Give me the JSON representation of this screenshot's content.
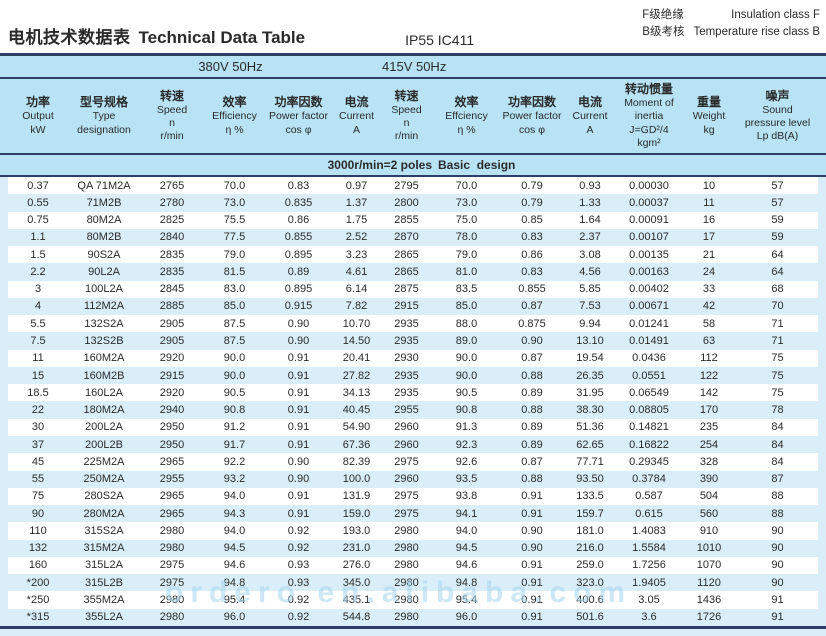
{
  "header": {
    "title_cn": "电机技术数据表",
    "title_en": "Technical Data Table",
    "protection": "IP55 IC411",
    "insulation_cn": "F级绝缘",
    "insulation_en": "Insulation class F",
    "temp_rise_cn": "B级考核",
    "temp_rise_en": "Temperature rise class B"
  },
  "table": {
    "voltage_bands": [
      "380V 50Hz",
      "415V 50Hz"
    ],
    "section": {
      "left": "3000r/min=2 poles",
      "right": "Basic  design"
    },
    "columns": [
      {
        "cn": "功率",
        "lines": [
          "Output",
          "kW"
        ]
      },
      {
        "cn": "型号规格",
        "lines": [
          "Type",
          "designation"
        ]
      },
      {
        "cn": "转速",
        "lines": [
          "Speed",
          "n",
          "r/min"
        ]
      },
      {
        "cn": "效率",
        "lines": [
          "Efficiency",
          "η %"
        ]
      },
      {
        "cn": "功率因数",
        "lines": [
          "Power factor",
          "cos φ"
        ]
      },
      {
        "cn": "电流",
        "lines": [
          "Current",
          "A"
        ]
      },
      {
        "cn": "转速",
        "lines": [
          "Speed",
          "n",
          "r/min"
        ]
      },
      {
        "cn": "效率",
        "lines": [
          "Effciency",
          "η %"
        ]
      },
      {
        "cn": "功率因数",
        "lines": [
          "Power factor",
          "cos φ"
        ]
      },
      {
        "cn": "电流",
        "lines": [
          "Current",
          "A"
        ]
      },
      {
        "cn": "转动惯量",
        "lines": [
          "Moment of",
          "inertia",
          "J=GD²/4",
          "kgm²"
        ]
      },
      {
        "cn": "重量",
        "lines": [
          "Weight",
          "kg"
        ]
      },
      {
        "cn": "噪声",
        "lines": [
          "Sound",
          "pressure level",
          "Lp dB(A)"
        ]
      }
    ],
    "rows": [
      [
        "0.37",
        "QA 71M2A",
        "2765",
        "70.0",
        "0.83",
        "0.97",
        "2795",
        "70.0",
        "0.79",
        "0.93",
        "0.00030",
        "10",
        "57"
      ],
      [
        "0.55",
        "71M2B",
        "2780",
        "73.0",
        "0.835",
        "1.37",
        "2800",
        "73.0",
        "0.79",
        "1.33",
        "0.00037",
        "11",
        "57"
      ],
      [
        "0.75",
        "80M2A",
        "2825",
        "75.5",
        "0.86",
        "1.75",
        "2855",
        "75.0",
        "0.85",
        "1.64",
        "0.00091",
        "16",
        "59"
      ],
      [
        "1.1",
        "80M2B",
        "2840",
        "77.5",
        "0.855",
        "2.52",
        "2870",
        "78.0",
        "0.83",
        "2.37",
        "0.00107",
        "17",
        "59"
      ],
      [
        "1.5",
        "90S2A",
        "2835",
        "79.0",
        "0.895",
        "3.23",
        "2865",
        "79.0",
        "0.86",
        "3.08",
        "0.00135",
        "21",
        "64"
      ],
      [
        "2.2",
        "90L2A",
        "2835",
        "81.5",
        "0.89",
        "4.61",
        "2865",
        "81.0",
        "0.83",
        "4.56",
        "0.00163",
        "24",
        "64"
      ],
      [
        "3",
        "100L2A",
        "2845",
        "83.0",
        "0.895",
        "6.14",
        "2875",
        "83.5",
        "0.855",
        "5.85",
        "0.00402",
        "33",
        "68"
      ],
      [
        "4",
        "112M2A",
        "2885",
        "85.0",
        "0.915",
        "7.82",
        "2915",
        "85.0",
        "0.87",
        "7.53",
        "0.00671",
        "42",
        "70"
      ],
      [
        "5.5",
        "132S2A",
        "2905",
        "87.5",
        "0.90",
        "10.70",
        "2935",
        "88.0",
        "0.875",
        "9.94",
        "0.01241",
        "58",
        "71"
      ],
      [
        "7.5",
        "132S2B",
        "2905",
        "87.5",
        "0.90",
        "14.50",
        "2935",
        "89.0",
        "0.90",
        "13.10",
        "0.01491",
        "63",
        "71"
      ],
      [
        "11",
        "160M2A",
        "2920",
        "90.0",
        "0.91",
        "20.41",
        "2930",
        "90.0",
        "0.87",
        "19.54",
        "0.0436",
        "112",
        "75"
      ],
      [
        "15",
        "160M2B",
        "2915",
        "90.0",
        "0.91",
        "27.82",
        "2935",
        "90.0",
        "0.88",
        "26.35",
        "0.0551",
        "122",
        "75"
      ],
      [
        "18.5",
        "160L2A",
        "2920",
        "90.5",
        "0.91",
        "34.13",
        "2935",
        "90.5",
        "0.89",
        "31.95",
        "0.06549",
        "142",
        "75"
      ],
      [
        "22",
        "180M2A",
        "2940",
        "90.8",
        "0.91",
        "40.45",
        "2955",
        "90.8",
        "0.88",
        "38.30",
        "0.08805",
        "170",
        "78"
      ],
      [
        "30",
        "200L2A",
        "2950",
        "91.2",
        "0.91",
        "54.90",
        "2960",
        "91.3",
        "0.89",
        "51.36",
        "0.14821",
        "235",
        "84"
      ],
      [
        "37",
        "200L2B",
        "2950",
        "91.7",
        "0.91",
        "67.36",
        "2960",
        "92.3",
        "0.89",
        "62.65",
        "0.16822",
        "254",
        "84"
      ],
      [
        "45",
        "225M2A",
        "2965",
        "92.2",
        "0.90",
        "82.39",
        "2975",
        "92.6",
        "0.87",
        "77.71",
        "0.29345",
        "328",
        "84"
      ],
      [
        "55",
        "250M2A",
        "2955",
        "93.2",
        "0.90",
        "100.0",
        "2960",
        "93.5",
        "0.88",
        "93.50",
        "0.3784",
        "390",
        "87"
      ],
      [
        "75",
        "280S2A",
        "2965",
        "94.0",
        "0.91",
        "131.9",
        "2975",
        "93.8",
        "0.91",
        "133.5",
        "0.587",
        "504",
        "88"
      ],
      [
        "90",
        "280M2A",
        "2965",
        "94.3",
        "0.91",
        "159.0",
        "2975",
        "94.1",
        "0.91",
        "159.7",
        "0.615",
        "560",
        "88"
      ],
      [
        "110",
        "315S2A",
        "2980",
        "94.0",
        "0.92",
        "193.0",
        "2980",
        "94.0",
        "0.90",
        "181.0",
        "1.4083",
        "910",
        "90"
      ],
      [
        "132",
        "315M2A",
        "2980",
        "94.5",
        "0.92",
        "231.0",
        "2980",
        "94.5",
        "0.90",
        "216.0",
        "1.5584",
        "1010",
        "90"
      ],
      [
        "160",
        "315L2A",
        "2975",
        "94.6",
        "0.93",
        "276.0",
        "2980",
        "94.6",
        "0.91",
        "259.0",
        "1.7256",
        "1070",
        "90"
      ],
      [
        "*200",
        "315L2B",
        "2975",
        "94.8",
        "0.93",
        "345.0",
        "2980",
        "94.8",
        "0.91",
        "323.0",
        "1.9405",
        "1120",
        "90"
      ],
      [
        "*250",
        "355M2A",
        "2980",
        "95.4",
        "0.92",
        "435.1",
        "2980",
        "95.4",
        "0.91",
        "400.6",
        "3.05",
        "1436",
        "91"
      ],
      [
        "*315",
        "355L2A",
        "2980",
        "96.0",
        "0.92",
        "544.8",
        "2980",
        "96.0",
        "0.91",
        "501.6",
        "3.6",
        "1726",
        "91"
      ]
    ]
  },
  "watermark": {
    "text": "ordero en.alibaba.com"
  },
  "colors": {
    "band_blue": "#b7e3f5",
    "stripe_blue": "#d9eef9",
    "divider_navy": "#2e3d68",
    "watermark_blue": "#a5d6ec"
  }
}
